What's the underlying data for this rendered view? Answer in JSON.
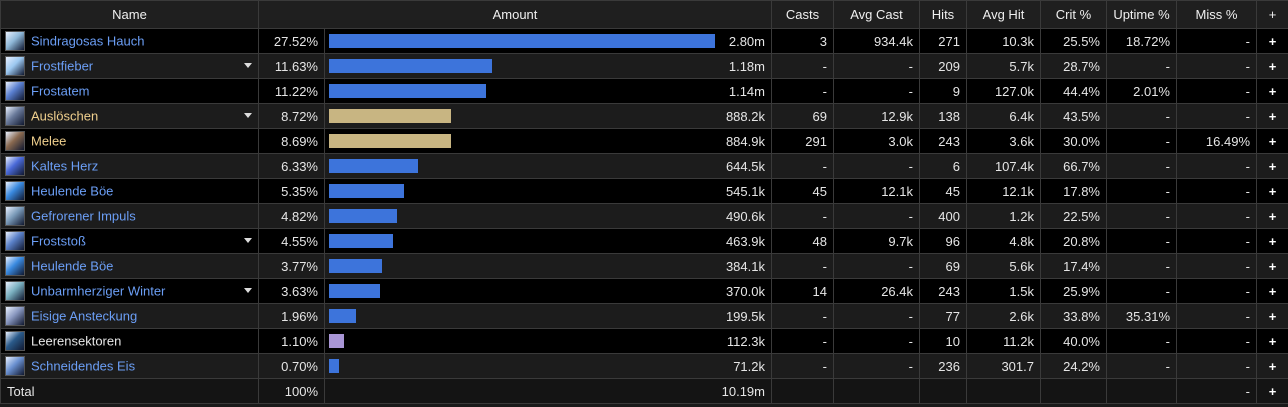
{
  "columns": {
    "name": "Name",
    "amount": "Amount",
    "casts": "Casts",
    "avg_cast": "Avg Cast",
    "hits": "Hits",
    "avg_hit": "Avg Hit",
    "crit": "Crit %",
    "uptime": "Uptime %",
    "miss": "Miss %",
    "expand": "+"
  },
  "colors": {
    "frost": "#6b9ef5",
    "physical": "#f0d08e",
    "shadow": "#e8e8e8",
    "bar_frost": "#3d74db",
    "bar_physical": "#c8b582",
    "bar_shadow": "#a996d6"
  },
  "rows": [
    {
      "name": "Sindragosas Hauch",
      "school": "frost",
      "icon": "dragon-breath-icon",
      "iconColor": "#8fb8d8",
      "dropdown": false,
      "pct": "27.52%",
      "amount": "2.80m",
      "fraction": 1.0,
      "casts": "3",
      "avg_cast": "934.4k",
      "hits": "271",
      "avg_hit": "10.3k",
      "crit": "25.5%",
      "uptime": "18.72%",
      "miss": "-"
    },
    {
      "name": "Frostfieber",
      "school": "frost",
      "icon": "frost-fever-icon",
      "iconColor": "#9cc8f0",
      "dropdown": true,
      "pct": "11.63%",
      "amount": "1.18m",
      "fraction": 0.4226,
      "casts": "-",
      "avg_cast": "-",
      "hits": "209",
      "avg_hit": "5.7k",
      "crit": "28.7%",
      "uptime": "-",
      "miss": "-"
    },
    {
      "name": "Frostatem",
      "school": "frost",
      "icon": "frost-breath-icon",
      "iconColor": "#5a7fd0",
      "dropdown": false,
      "pct": "11.22%",
      "amount": "1.14m",
      "fraction": 0.4077,
      "casts": "-",
      "avg_cast": "-",
      "hits": "9",
      "avg_hit": "127.0k",
      "crit": "44.4%",
      "uptime": "2.01%",
      "miss": "-"
    },
    {
      "name": "Auslöschen",
      "school": "physical",
      "icon": "obliterate-icon",
      "iconColor": "#6a7a9a",
      "dropdown": true,
      "pct": "8.72%",
      "amount": "888.2k",
      "fraction": 0.3169,
      "casts": "69",
      "avg_cast": "12.9k",
      "hits": "138",
      "avg_hit": "6.4k",
      "crit": "43.5%",
      "uptime": "-",
      "miss": "-"
    },
    {
      "name": "Melee",
      "school": "physical",
      "icon": "melee-icon",
      "iconColor": "#8a6a50",
      "dropdown": false,
      "pct": "8.69%",
      "amount": "884.9k",
      "fraction": 0.3158,
      "casts": "291",
      "avg_cast": "3.0k",
      "hits": "243",
      "avg_hit": "3.6k",
      "crit": "30.0%",
      "uptime": "-",
      "miss": "16.49%"
    },
    {
      "name": "Kaltes Herz",
      "school": "frost",
      "icon": "cold-heart-icon",
      "iconColor": "#4a6ad8",
      "dropdown": false,
      "pct": "6.33%",
      "amount": "644.5k",
      "fraction": 0.23,
      "casts": "-",
      "avg_cast": "-",
      "hits": "6",
      "avg_hit": "107.4k",
      "crit": "66.7%",
      "uptime": "-",
      "miss": "-"
    },
    {
      "name": "Heulende Böe",
      "school": "frost",
      "icon": "howling-blast-icon",
      "iconColor": "#3a8ae0",
      "dropdown": false,
      "pct": "5.35%",
      "amount": "545.1k",
      "fraction": 0.1944,
      "casts": "45",
      "avg_cast": "12.1k",
      "hits": "45",
      "avg_hit": "12.1k",
      "crit": "17.8%",
      "uptime": "-",
      "miss": "-"
    },
    {
      "name": "Gefrorener Impuls",
      "school": "frost",
      "icon": "frozen-pulse-icon",
      "iconColor": "#7a9ab8",
      "dropdown": false,
      "pct": "4.82%",
      "amount": "490.6k",
      "fraction": 0.1751,
      "casts": "-",
      "avg_cast": "-",
      "hits": "400",
      "avg_hit": "1.2k",
      "crit": "22.5%",
      "uptime": "-",
      "miss": "-"
    },
    {
      "name": "Froststoß",
      "school": "frost",
      "icon": "frost-strike-icon",
      "iconColor": "#5a80c8",
      "dropdown": true,
      "pct": "4.55%",
      "amount": "463.9k",
      "fraction": 0.1654,
      "casts": "48",
      "avg_cast": "9.7k",
      "hits": "96",
      "avg_hit": "4.8k",
      "crit": "20.8%",
      "uptime": "-",
      "miss": "-"
    },
    {
      "name": "Heulende Böe",
      "school": "frost",
      "icon": "howling-blast-icon",
      "iconColor": "#3a8ae0",
      "dropdown": false,
      "pct": "3.77%",
      "amount": "384.1k",
      "fraction": 0.137,
      "casts": "-",
      "avg_cast": "-",
      "hits": "69",
      "avg_hit": "5.6k",
      "crit": "17.4%",
      "uptime": "-",
      "miss": "-"
    },
    {
      "name": "Unbarmherziger Winter",
      "school": "frost",
      "icon": "remorseless-winter-icon",
      "iconColor": "#7ab0c0",
      "dropdown": true,
      "pct": "3.63%",
      "amount": "370.0k",
      "fraction": 0.1321,
      "casts": "14",
      "avg_cast": "26.4k",
      "hits": "243",
      "avg_hit": "1.5k",
      "crit": "25.9%",
      "uptime": "-",
      "miss": "-"
    },
    {
      "name": "Eisige Ansteckung",
      "school": "frost",
      "icon": "icy-contagion-icon",
      "iconColor": "#8a98c0",
      "dropdown": false,
      "pct": "1.96%",
      "amount": "199.5k",
      "fraction": 0.0712,
      "casts": "-",
      "avg_cast": "-",
      "hits": "77",
      "avg_hit": "2.6k",
      "crit": "33.8%",
      "uptime": "35.31%",
      "miss": "-"
    },
    {
      "name": "Leerensektoren",
      "school": "shadow",
      "icon": "void-sectors-icon",
      "iconColor": "#2a5a8a",
      "dropdown": false,
      "pct": "1.10%",
      "amount": "112.3k",
      "fraction": 0.0401,
      "casts": "-",
      "avg_cast": "-",
      "hits": "10",
      "avg_hit": "11.2k",
      "crit": "40.0%",
      "uptime": "-",
      "miss": "-"
    },
    {
      "name": "Schneidendes Eis",
      "school": "frost",
      "icon": "cutting-ice-icon",
      "iconColor": "#6a90d0",
      "dropdown": false,
      "pct": "0.70%",
      "amount": "71.2k",
      "fraction": 0.025,
      "casts": "-",
      "avg_cast": "-",
      "hits": "236",
      "avg_hit": "301.7",
      "crit": "24.2%",
      "uptime": "-",
      "miss": "-"
    }
  ],
  "total": {
    "label": "Total",
    "pct": "100%",
    "amount": "10.19m",
    "miss": "-"
  }
}
